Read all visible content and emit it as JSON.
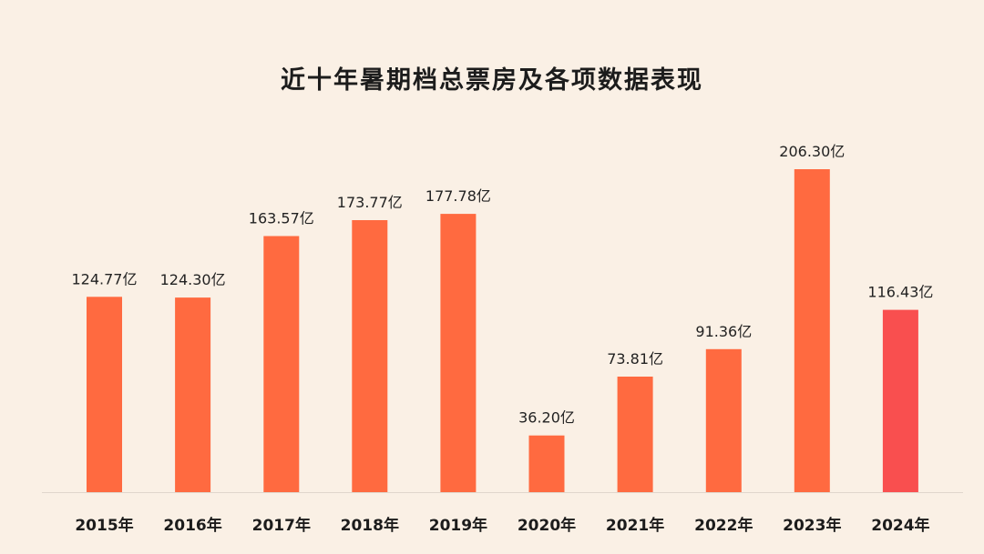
{
  "chart_data": {
    "type": "bar",
    "title": "近十年暑期档总票房及各项数据表现",
    "categories": [
      "2015年",
      "2016年",
      "2017年",
      "2018年",
      "2019年",
      "2020年",
      "2021年",
      "2022年",
      "2023年",
      "2024年"
    ],
    "values": [
      124.77,
      124.3,
      163.57,
      173.77,
      177.78,
      36.2,
      73.81,
      91.36,
      206.3,
      116.43
    ],
    "value_labels": [
      "124.77亿",
      "124.30亿",
      "163.57亿",
      "173.77亿",
      "177.78亿",
      "36.20亿",
      "73.81亿",
      "91.36亿",
      "206.30亿",
      "116.43亿"
    ],
    "unit": "亿",
    "xlabel": "",
    "ylabel": "",
    "ylim": [
      0,
      206.3
    ],
    "grid": false,
    "legend": "none",
    "colors": {
      "bar": "#ff6a40",
      "highlight_bar": "#f94f4f",
      "highlight_category": "2024年",
      "background": "#faf0e5",
      "baseline": "#e0d6cc"
    }
  }
}
